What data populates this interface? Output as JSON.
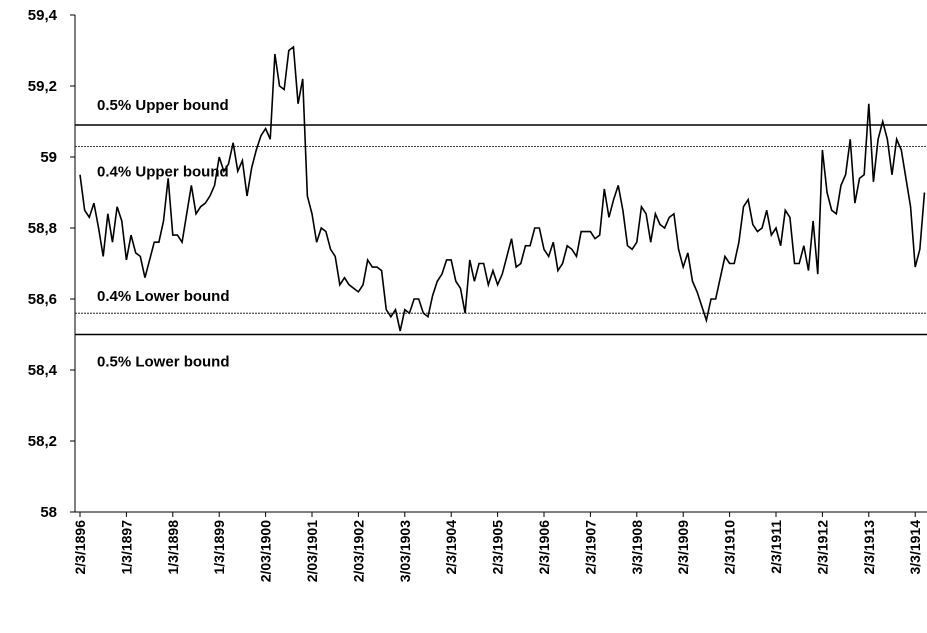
{
  "chart_data": {
    "type": "line",
    "color": "#000000",
    "categories": [
      "2/3/1896",
      null,
      null,
      null,
      null,
      null,
      null,
      null,
      null,
      null,
      "1/3/1897",
      null,
      null,
      null,
      null,
      null,
      null,
      null,
      null,
      null,
      "1/3/1898",
      null,
      null,
      null,
      null,
      null,
      null,
      null,
      null,
      null,
      "1/3/1899",
      null,
      null,
      null,
      null,
      null,
      null,
      null,
      null,
      null,
      "2/03/1900",
      null,
      null,
      null,
      null,
      null,
      null,
      null,
      null,
      null,
      "2/03/1901",
      null,
      null,
      null,
      null,
      null,
      null,
      null,
      null,
      null,
      "2/03/1902",
      null,
      null,
      null,
      null,
      null,
      null,
      null,
      null,
      null,
      "3/03/1903",
      null,
      null,
      null,
      null,
      null,
      null,
      null,
      null,
      null,
      "2/3/1904",
      null,
      null,
      null,
      null,
      null,
      null,
      null,
      null,
      null,
      "2/3/1905",
      null,
      null,
      null,
      null,
      null,
      null,
      null,
      null,
      null,
      "2/3/1906",
      null,
      null,
      null,
      null,
      null,
      null,
      null,
      null,
      null,
      "2/3/1907",
      null,
      null,
      null,
      null,
      null,
      null,
      null,
      null,
      null,
      "3/3/1908",
      null,
      null,
      null,
      null,
      null,
      null,
      null,
      null,
      null,
      "2/3/1909",
      null,
      null,
      null,
      null,
      null,
      null,
      null,
      null,
      null,
      "2/3/1910",
      null,
      null,
      null,
      null,
      null,
      null,
      null,
      null,
      null,
      "2/3/1911",
      null,
      null,
      null,
      null,
      null,
      null,
      null,
      null,
      null,
      "2/3/1912",
      null,
      null,
      null,
      null,
      null,
      null,
      null,
      null,
      null,
      "2/3/1913",
      null,
      null,
      null,
      null,
      null,
      null,
      null,
      null,
      null,
      "3/3/1914",
      null,
      null
    ],
    "values": [
      58.95,
      58.85,
      58.83,
      58.87,
      58.8,
      58.72,
      58.84,
      58.76,
      58.86,
      58.82,
      58.71,
      58.78,
      58.73,
      58.72,
      58.66,
      58.71,
      58.76,
      58.76,
      58.82,
      58.94,
      58.78,
      58.78,
      58.76,
      58.84,
      58.92,
      58.84,
      58.86,
      58.87,
      58.89,
      58.92,
      59.0,
      58.96,
      58.98,
      59.04,
      58.96,
      58.99,
      58.89,
      58.97,
      59.02,
      59.06,
      59.08,
      59.05,
      59.29,
      59.2,
      59.19,
      59.3,
      59.31,
      59.15,
      59.22,
      58.89,
      58.84,
      58.76,
      58.8,
      58.79,
      58.74,
      58.72,
      58.64,
      58.66,
      58.64,
      58.63,
      58.62,
      58.64,
      58.71,
      58.69,
      58.69,
      58.68,
      58.57,
      58.55,
      58.57,
      58.51,
      58.57,
      58.56,
      58.6,
      58.6,
      58.56,
      58.55,
      58.61,
      58.65,
      58.67,
      58.71,
      58.71,
      58.65,
      58.63,
      58.56,
      58.71,
      58.65,
      58.7,
      58.7,
      58.64,
      58.68,
      58.64,
      58.67,
      58.72,
      58.77,
      58.69,
      58.7,
      58.75,
      58.75,
      58.8,
      58.8,
      58.74,
      58.72,
      58.76,
      58.68,
      58.7,
      58.75,
      58.74,
      58.72,
      58.79,
      58.79,
      58.79,
      58.77,
      58.78,
      58.91,
      58.83,
      58.88,
      58.92,
      58.85,
      58.75,
      58.74,
      58.76,
      58.86,
      58.84,
      58.76,
      58.84,
      58.81,
      58.8,
      58.83,
      58.84,
      58.74,
      58.69,
      58.73,
      58.65,
      58.62,
      58.58,
      58.54,
      58.6,
      58.6,
      58.66,
      58.72,
      58.7,
      58.7,
      58.76,
      58.86,
      58.88,
      58.81,
      58.79,
      58.8,
      58.85,
      58.78,
      58.8,
      58.75,
      58.85,
      58.83,
      58.7,
      58.7,
      58.75,
      58.68,
      58.82,
      58.67,
      59.02,
      58.9,
      58.85,
      58.84,
      58.92,
      58.95,
      59.05,
      58.87,
      58.94,
      58.95,
      59.15,
      58.93,
      59.05,
      59.1,
      59.05,
      58.95,
      59.05,
      59.02,
      58.94,
      58.86,
      58.69,
      58.74,
      58.9
    ],
    "ylim": [
      58,
      59.4
    ],
    "yticks": [
      58,
      {
        "value": 58.2,
        "label": "58,2"
      },
      {
        "value": 58.4,
        "label": "58,4"
      },
      {
        "value": 58.6,
        "label": "58,6"
      },
      {
        "value": 58.8,
        "label": "58,8"
      },
      59,
      {
        "value": 59.2,
        "label": "59,2"
      },
      {
        "value": 59.4,
        "label": "59,4"
      }
    ],
    "bounds": [
      {
        "label": "0.5% Upper bound",
        "value": 59.09,
        "style": "solid"
      },
      {
        "label": "0.4% Upper bound",
        "value": 59.03,
        "style": "dotted"
      },
      {
        "label": "0.4% Lower bound",
        "value": 58.56,
        "style": "dotted"
      },
      {
        "label": "0.5% Lower bound",
        "value": 58.5,
        "style": "solid"
      }
    ]
  }
}
